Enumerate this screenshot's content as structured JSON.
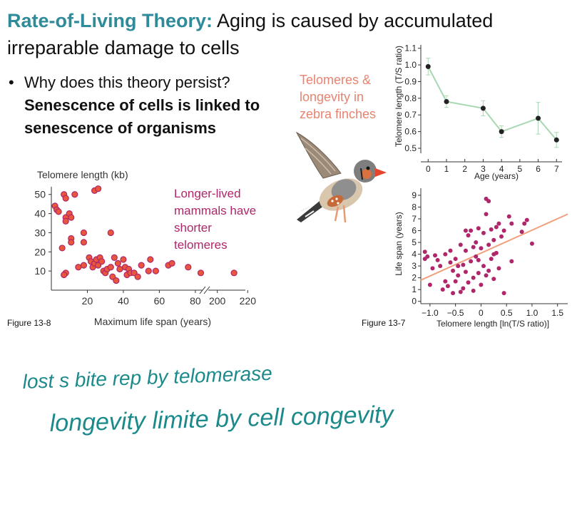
{
  "title": {
    "lead": "Rate-of-Living Theory:",
    "text": " Aging is caused by accumulated irreparable damage to cells"
  },
  "bullet": {
    "marker": "•",
    "question": "Why does this theory persist?",
    "answer": "Senescence of cells is linked to senescence of organisms"
  },
  "finch_caption": "Telomeres & longevity in zebra finches",
  "mammal_note": [
    "Longer-lived",
    "mammals have",
    "shorter",
    "telomeres"
  ],
  "fig_13_8": "Figure 13-8",
  "fig_13_7": "Figure 13-7",
  "handwriting": {
    "line1": "lost s bite rep by telomerase",
    "line2": "longevity limite by cell congevity"
  },
  "colors": {
    "title_accent": "#2f8a9a",
    "finch_caption": "#e8836f",
    "mammal_note": "#b0266a",
    "scatter_point": "#e8573b",
    "scatter_point_edge": "#b0266a",
    "telomere_line": "#a8d8b2",
    "lifespan_point": "#b0266a",
    "fit_line": "#f0a07e",
    "ink": "#1c8a8a"
  },
  "chart_data": [
    {
      "id": "fig-13-8",
      "type": "scatter",
      "title": "Telomere length (kb)",
      "xlabel": "Maximum life span (years)",
      "ylabel": "",
      "x_tick_labels": [
        "20",
        "40",
        "60",
        "80",
        "200",
        "220"
      ],
      "y_tick_labels": [
        "10",
        "20",
        "30",
        "40",
        "50"
      ],
      "x_axis_break": "between 80 and 200",
      "ylim": [
        0,
        54
      ],
      "points": [
        {
          "x": 2,
          "y": 44
        },
        {
          "x": 3,
          "y": 42
        },
        {
          "x": 4,
          "y": 41
        },
        {
          "x": 7,
          "y": 50
        },
        {
          "x": 8,
          "y": 48
        },
        {
          "x": 8,
          "y": 38
        },
        {
          "x": 8,
          "y": 36
        },
        {
          "x": 10,
          "y": 40
        },
        {
          "x": 11,
          "y": 38
        },
        {
          "x": 13,
          "y": 50
        },
        {
          "x": 6,
          "y": 22
        },
        {
          "x": 11,
          "y": 27
        },
        {
          "x": 11,
          "y": 25
        },
        {
          "x": 18,
          "y": 30
        },
        {
          "x": 18,
          "y": 25
        },
        {
          "x": 24,
          "y": 52
        },
        {
          "x": 26,
          "y": 53
        },
        {
          "x": 33,
          "y": 30
        },
        {
          "x": 8,
          "y": 9
        },
        {
          "x": 7,
          "y": 8
        },
        {
          "x": 15,
          "y": 12
        },
        {
          "x": 18,
          "y": 13
        },
        {
          "x": 21,
          "y": 17
        },
        {
          "x": 22,
          "y": 15
        },
        {
          "x": 23,
          "y": 12
        },
        {
          "x": 24,
          "y": 14
        },
        {
          "x": 25,
          "y": 16
        },
        {
          "x": 26,
          "y": 13
        },
        {
          "x": 27,
          "y": 17
        },
        {
          "x": 28,
          "y": 15
        },
        {
          "x": 29,
          "y": 10
        },
        {
          "x": 30,
          "y": 9
        },
        {
          "x": 31,
          "y": 11
        },
        {
          "x": 33,
          "y": 12
        },
        {
          "x": 34,
          "y": 7
        },
        {
          "x": 35,
          "y": 17
        },
        {
          "x": 36,
          "y": 5
        },
        {
          "x": 37,
          "y": 14
        },
        {
          "x": 38,
          "y": 11
        },
        {
          "x": 40,
          "y": 16
        },
        {
          "x": 41,
          "y": 12
        },
        {
          "x": 42,
          "y": 8
        },
        {
          "x": 43,
          "y": 11
        },
        {
          "x": 44,
          "y": 9
        },
        {
          "x": 46,
          "y": 9
        },
        {
          "x": 48,
          "y": 7
        },
        {
          "x": 50,
          "y": 13
        },
        {
          "x": 54,
          "y": 10
        },
        {
          "x": 55,
          "y": 16
        },
        {
          "x": 58,
          "y": 10
        },
        {
          "x": 65,
          "y": 13
        },
        {
          "x": 67,
          "y": 14
        },
        {
          "x": 76,
          "y": 12
        },
        {
          "x": 83,
          "y": 9
        },
        {
          "x": 211,
          "y": 9
        }
      ]
    },
    {
      "id": "fig-13-7-top",
      "type": "line",
      "title": "",
      "xlabel": "Age (years)",
      "ylabel": "Telomere length (T/S ratio)",
      "x": [
        0,
        1,
        2,
        3,
        4,
        5,
        6,
        7
      ],
      "x_tick_labels": [
        "0",
        "1",
        "2",
        "3",
        "4",
        "5",
        "6",
        "7"
      ],
      "y_tick_labels": [
        "0.5",
        "0.6",
        "0.7",
        "0.8",
        "0.9",
        "1.0",
        "1.1"
      ],
      "xlim": [
        -0.4,
        7.3
      ],
      "ylim": [
        0.47,
        1.12
      ],
      "points": [
        {
          "x": 0,
          "y": 0.99,
          "err": 0.05
        },
        {
          "x": 1,
          "y": 0.78,
          "err": 0.035
        },
        {
          "x": 3,
          "y": 0.74,
          "err": 0.045
        },
        {
          "x": 4,
          "y": 0.6,
          "err": 0.035
        },
        {
          "x": 6,
          "y": 0.68,
          "err": 0.095
        },
        {
          "x": 7,
          "y": 0.55,
          "err": 0.045
        }
      ]
    },
    {
      "id": "fig-13-7-bottom",
      "type": "scatter",
      "title": "",
      "xlabel": "Telomere length [ln(T/S ratio)]",
      "ylabel": "Life span (years)",
      "x_tick_labels": [
        "−1.0",
        "−0.5",
        "0",
        "0.5",
        "1.0",
        "1.5"
      ],
      "x_ticks": [
        -1.0,
        -0.5,
        0,
        0.5,
        1.0,
        1.5
      ],
      "y_tick_labels": [
        "0",
        "1",
        "2",
        "3",
        "4",
        "5",
        "6",
        "7",
        "8",
        "9"
      ],
      "xlim": [
        -1.18,
        1.7
      ],
      "ylim": [
        -0.2,
        9.6
      ],
      "fit_line": [
        {
          "x": -1.18,
          "y": 1.8
        },
        {
          "x": 1.7,
          "y": 7.4
        }
      ],
      "points": [
        {
          "x": -1.1,
          "y": 4.2
        },
        {
          "x": -1.1,
          "y": 3.6
        },
        {
          "x": -1.05,
          "y": 3.8
        },
        {
          "x": -1.0,
          "y": 1.4
        },
        {
          "x": -0.95,
          "y": 2.8
        },
        {
          "x": -0.9,
          "y": 3.9
        },
        {
          "x": -0.85,
          "y": 3.5
        },
        {
          "x": -0.8,
          "y": 3.0
        },
        {
          "x": -0.75,
          "y": 1.0
        },
        {
          "x": -0.7,
          "y": 4.0
        },
        {
          "x": -0.65,
          "y": 1.3
        },
        {
          "x": -0.6,
          "y": 3.3
        },
        {
          "x": -0.55,
          "y": 2.6
        },
        {
          "x": -0.55,
          "y": 0.7
        },
        {
          "x": -0.5,
          "y": 1.7
        },
        {
          "x": -0.5,
          "y": 3.6
        },
        {
          "x": -0.45,
          "y": 2.2
        },
        {
          "x": -0.4,
          "y": 0.8
        },
        {
          "x": -0.4,
          "y": 4.8
        },
        {
          "x": -0.35,
          "y": 3.1
        },
        {
          "x": -0.35,
          "y": 1.1
        },
        {
          "x": -0.3,
          "y": 2.5
        },
        {
          "x": -0.3,
          "y": 4.3
        },
        {
          "x": -0.25,
          "y": 5.6
        },
        {
          "x": -0.25,
          "y": 1.6
        },
        {
          "x": -0.2,
          "y": 6.0
        },
        {
          "x": -0.2,
          "y": 3.4
        },
        {
          "x": -0.15,
          "y": 2.0
        },
        {
          "x": -0.15,
          "y": 0.9
        },
        {
          "x": -0.1,
          "y": 5.0
        },
        {
          "x": -0.1,
          "y": 3.8
        },
        {
          "x": -0.05,
          "y": 6.2
        },
        {
          "x": -0.05,
          "y": 2.4
        },
        {
          "x": 0.0,
          "y": 4.5
        },
        {
          "x": 0.0,
          "y": 1.4
        },
        {
          "x": 0.05,
          "y": 5.8
        },
        {
          "x": 0.05,
          "y": 3.0
        },
        {
          "x": 0.1,
          "y": 8.7
        },
        {
          "x": 0.1,
          "y": 7.4
        },
        {
          "x": 0.1,
          "y": 2.2
        },
        {
          "x": 0.15,
          "y": 8.5
        },
        {
          "x": 0.15,
          "y": 4.8
        },
        {
          "x": 0.2,
          "y": 6.1
        },
        {
          "x": 0.2,
          "y": 3.6
        },
        {
          "x": 0.25,
          "y": 5.2
        },
        {
          "x": 0.25,
          "y": 1.9
        },
        {
          "x": 0.3,
          "y": 6.3
        },
        {
          "x": 0.3,
          "y": 4.1
        },
        {
          "x": 0.35,
          "y": 2.8
        },
        {
          "x": 0.4,
          "y": 5.5
        },
        {
          "x": 0.45,
          "y": 6.0
        },
        {
          "x": 0.45,
          "y": 0.7
        },
        {
          "x": 0.55,
          "y": 7.2
        },
        {
          "x": 0.6,
          "y": 6.6
        },
        {
          "x": 0.6,
          "y": 3.4
        },
        {
          "x": 0.8,
          "y": 5.9
        },
        {
          "x": 0.85,
          "y": 6.6
        },
        {
          "x": 0.9,
          "y": 6.9
        },
        {
          "x": 1.0,
          "y": 4.9
        },
        {
          "x": -0.6,
          "y": 4.3
        },
        {
          "x": -0.15,
          "y": 4.6
        },
        {
          "x": -0.3,
          "y": 6.0
        },
        {
          "x": 0.25,
          "y": 4.0
        },
        {
          "x": -0.45,
          "y": 3.0
        },
        {
          "x": -0.05,
          "y": 3.5
        },
        {
          "x": 0.15,
          "y": 2.6
        },
        {
          "x": -0.7,
          "y": 1.7
        },
        {
          "x": 0.35,
          "y": 6.6
        }
      ]
    }
  ]
}
